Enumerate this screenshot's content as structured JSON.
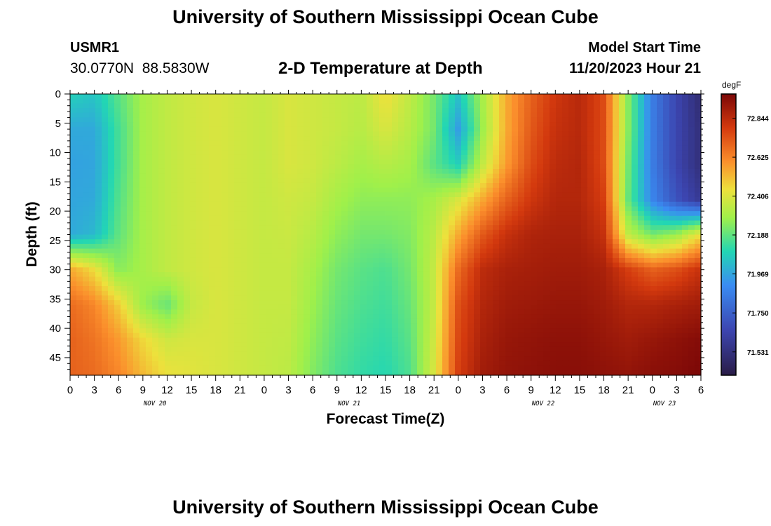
{
  "page": {
    "title_top": "University of Southern Mississippi Ocean Cube",
    "title_bottom": "University of Southern Mississippi Ocean Cube",
    "station_id": "USMR1",
    "station_location": "30.0770N  88.5830W",
    "plot_title": "2-D Temperature at Depth",
    "model_start_label": "Model Start Time",
    "model_start_value": "11/20/2023 Hour 21"
  },
  "chart_data": {
    "type": "heatmap",
    "title": "2-D Temperature at Depth",
    "xlabel": "Forecast Time(Z)",
    "ylabel": "Depth (ft)",
    "x_tick_labels": [
      "0",
      "3",
      "6",
      "9",
      "12",
      "15",
      "18",
      "21",
      "0",
      "3",
      "6",
      "9",
      "12",
      "15",
      "18",
      "21",
      "0",
      "3",
      "6",
      "9",
      "12",
      "15",
      "18",
      "21",
      "0",
      "3",
      "6"
    ],
    "x_date_labels": [
      {
        "label": "NOV 20",
        "at_tick": 3.5
      },
      {
        "label": "NOV 21",
        "at_tick": 11.5
      },
      {
        "label": "NOV 22",
        "at_tick": 19.5
      },
      {
        "label": "NOV 23",
        "at_tick": 24.5
      }
    ],
    "xlim_hours": [
      0,
      78
    ],
    "y_ticks": [
      0,
      5,
      10,
      15,
      20,
      25,
      30,
      35,
      40,
      45
    ],
    "ylim": [
      0,
      48
    ],
    "y_inverted": true,
    "colorbar": {
      "units": "degF",
      "ticks": [
        "72.844",
        "72.625",
        "72.406",
        "72.188",
        "71.969",
        "71.750",
        "71.531"
      ],
      "range": [
        71.4,
        72.98
      ]
    },
    "hours": [
      0,
      3,
      6,
      9,
      12,
      15,
      18,
      21,
      24,
      27,
      30,
      33,
      36,
      39,
      42,
      45,
      48,
      51,
      54,
      57,
      60,
      63,
      66,
      69,
      72,
      75,
      78
    ],
    "depths": [
      0,
      6,
      12,
      18,
      24,
      30,
      36,
      42,
      48
    ],
    "temperature_degF": [
      [
        72.08,
        72.05,
        72.18,
        72.3,
        72.35,
        72.38,
        72.4,
        72.38,
        72.36,
        72.4,
        72.38,
        72.36,
        72.34,
        72.45,
        72.35,
        72.22,
        72.05,
        72.3,
        72.55,
        72.7,
        72.8,
        72.85,
        72.75,
        72.25,
        71.85,
        71.65,
        71.5
      ],
      [
        71.98,
        71.98,
        72.15,
        72.3,
        72.35,
        72.38,
        72.4,
        72.38,
        72.36,
        72.4,
        72.38,
        72.36,
        72.33,
        72.4,
        72.33,
        72.22,
        71.95,
        72.28,
        72.55,
        72.72,
        72.82,
        72.85,
        72.75,
        72.25,
        71.85,
        71.65,
        71.52
      ],
      [
        71.96,
        71.97,
        72.15,
        72.3,
        72.35,
        72.38,
        72.4,
        72.38,
        72.36,
        72.4,
        72.38,
        72.34,
        72.3,
        72.33,
        72.3,
        72.18,
        72.08,
        72.35,
        72.58,
        72.75,
        72.84,
        72.86,
        72.75,
        72.22,
        71.85,
        71.65,
        71.52
      ],
      [
        71.97,
        71.98,
        72.17,
        72.3,
        72.35,
        72.38,
        72.4,
        72.38,
        72.36,
        72.38,
        72.36,
        72.3,
        72.26,
        72.26,
        72.26,
        72.3,
        72.4,
        72.55,
        72.7,
        72.8,
        72.86,
        72.86,
        72.78,
        72.2,
        71.88,
        71.7,
        71.58
      ],
      [
        71.98,
        72.02,
        72.19,
        72.3,
        72.35,
        72.38,
        72.4,
        72.38,
        72.36,
        72.37,
        72.33,
        72.26,
        72.22,
        72.22,
        72.24,
        72.34,
        72.55,
        72.72,
        72.82,
        72.87,
        72.88,
        72.88,
        72.82,
        72.35,
        72.22,
        72.28,
        72.45
      ],
      [
        72.55,
        72.45,
        72.25,
        72.3,
        72.35,
        72.38,
        72.4,
        72.38,
        72.36,
        72.36,
        72.3,
        72.22,
        72.18,
        72.16,
        72.22,
        72.36,
        72.68,
        72.84,
        72.88,
        72.89,
        72.9,
        72.9,
        72.88,
        72.78,
        72.7,
        72.74,
        72.82
      ],
      [
        72.68,
        72.62,
        72.48,
        72.28,
        72.2,
        72.36,
        72.4,
        72.38,
        72.36,
        72.36,
        72.28,
        72.2,
        72.16,
        72.14,
        72.2,
        72.36,
        72.74,
        72.86,
        72.9,
        72.91,
        72.92,
        72.92,
        72.9,
        72.86,
        72.86,
        72.88,
        72.9
      ],
      [
        72.7,
        72.66,
        72.58,
        72.46,
        72.38,
        72.4,
        72.4,
        72.38,
        72.36,
        72.35,
        72.26,
        72.18,
        72.14,
        72.12,
        72.18,
        72.38,
        72.76,
        72.88,
        72.92,
        72.93,
        72.94,
        72.94,
        72.92,
        72.9,
        72.92,
        72.94,
        72.96
      ],
      [
        72.7,
        72.68,
        72.62,
        72.52,
        72.44,
        72.42,
        72.4,
        72.38,
        72.36,
        72.34,
        72.24,
        72.16,
        72.12,
        72.1,
        72.16,
        72.4,
        72.78,
        72.9,
        72.93,
        72.94,
        72.95,
        72.95,
        72.94,
        72.93,
        72.95,
        72.96,
        72.98
      ]
    ]
  }
}
